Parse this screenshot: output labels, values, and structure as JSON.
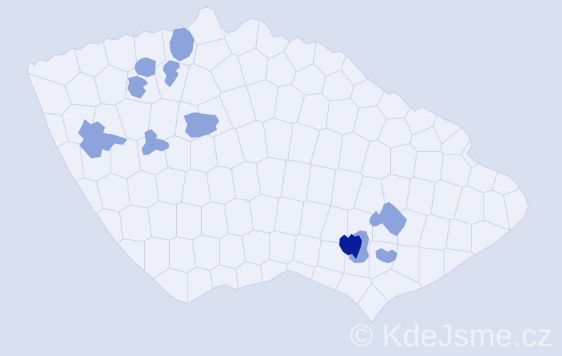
{
  "watermark": {
    "text": "© KdeJsme.cz"
  },
  "map": {
    "colors": {
      "background": "#d9e0ef",
      "land": "#edf0f9",
      "border": "#c6cfeb",
      "highlight_medium": "#8da3dc",
      "highlight_dark": "#0a1d99",
      "watermark_text": "#f5f7fc"
    },
    "highlighted_district_count_medium": 10,
    "highlighted_district_count_dark": 1
  }
}
